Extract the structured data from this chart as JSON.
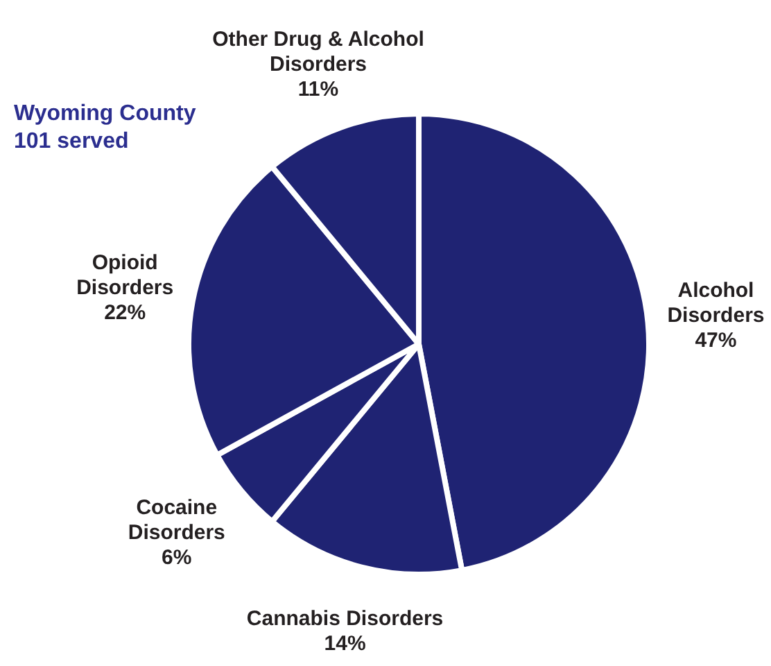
{
  "chart_data": {
    "type": "pie",
    "title": "Wyoming County",
    "subtitle": "101 served",
    "categories": [
      "Alcohol Disorders",
      "Cannabis Disorders",
      "Cocaine Disorders",
      "Opioid Disorders",
      "Other Drug & Alcohol Disorders"
    ],
    "values": [
      47,
      14,
      6,
      22,
      11
    ],
    "colors": [
      "#1f2373",
      "#1f2373",
      "#1f2373",
      "#1f2373",
      "#1f2373"
    ],
    "value_labels": [
      "47%",
      "14%",
      "6%",
      "22%",
      "11%"
    ],
    "legend": false
  }
}
